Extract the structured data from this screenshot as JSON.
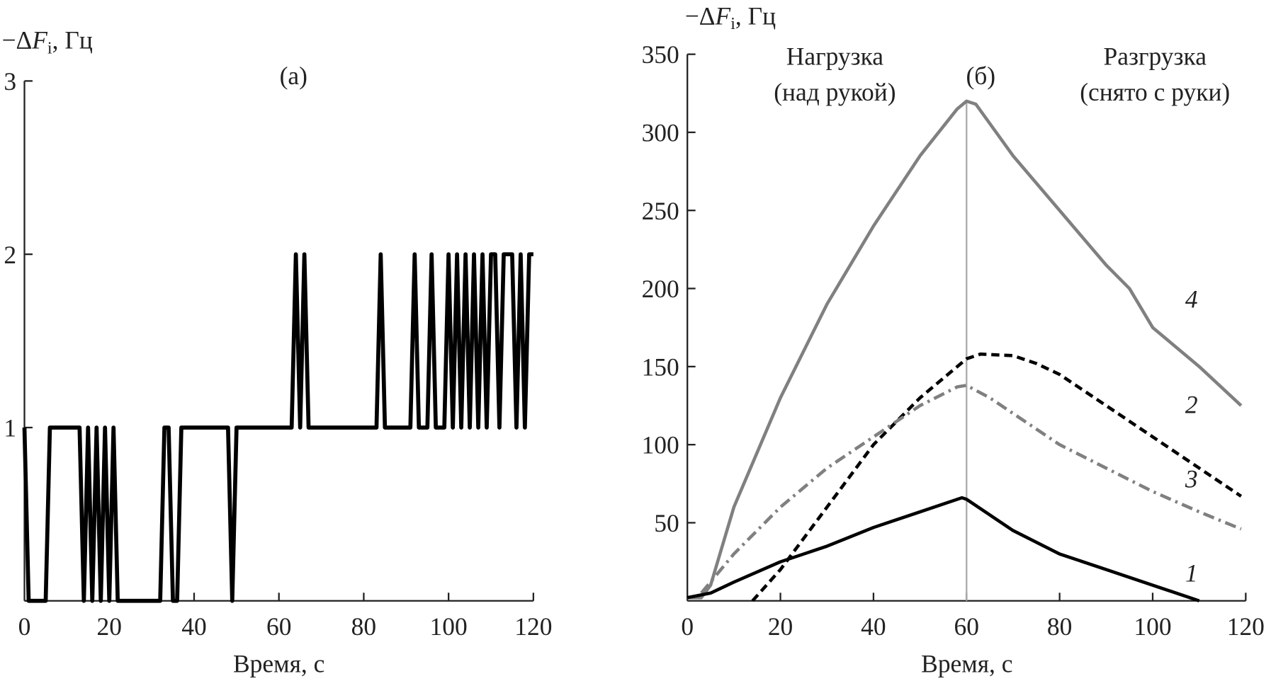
{
  "chart_data": [
    {
      "type": "line",
      "panel": "(а)",
      "ylabel_prefix": "−Δ",
      "ylabel_var": "F",
      "ylabel_sub": "i",
      "ylabel_unit": ", Гц",
      "xlabel": "Время, с",
      "xlim": [
        0,
        120
      ],
      "ylim": [
        0,
        3
      ],
      "xticks": [
        0,
        20,
        40,
        60,
        80,
        100,
        120
      ],
      "yticks": [
        0,
        1,
        2,
        3
      ],
      "ytick_labels": [
        "",
        "1",
        "2",
        "3"
      ],
      "series": [
        {
          "name": "ΔF",
          "color": "#000000",
          "points": [
            [
              0,
              1
            ],
            [
              1,
              0
            ],
            [
              5,
              0
            ],
            [
              6,
              1
            ],
            [
              13,
              1
            ],
            [
              14,
              0
            ],
            [
              15,
              1
            ],
            [
              16,
              0
            ],
            [
              17,
              1
            ],
            [
              18,
              0
            ],
            [
              19,
              1
            ],
            [
              20,
              0
            ],
            [
              21,
              1
            ],
            [
              22,
              0
            ],
            [
              32,
              0
            ],
            [
              33,
              1
            ],
            [
              34,
              1
            ],
            [
              35,
              0
            ],
            [
              36,
              0
            ],
            [
              37,
              1
            ],
            [
              48,
              1
            ],
            [
              49,
              0
            ],
            [
              50,
              1
            ],
            [
              63,
              1
            ],
            [
              64,
              2
            ],
            [
              65,
              1
            ],
            [
              66,
              2
            ],
            [
              67,
              1
            ],
            [
              83,
              1
            ],
            [
              84,
              2
            ],
            [
              85,
              1
            ],
            [
              91,
              1
            ],
            [
              92,
              2
            ],
            [
              93,
              1
            ],
            [
              95,
              1
            ],
            [
              96,
              2
            ],
            [
              97,
              1
            ],
            [
              99,
              1
            ],
            [
              100,
              2
            ],
            [
              101,
              1
            ],
            [
              102,
              2
            ],
            [
              103,
              1
            ],
            [
              104,
              2
            ],
            [
              105,
              1
            ],
            [
              106,
              2
            ],
            [
              107,
              1
            ],
            [
              108,
              2
            ],
            [
              109,
              1
            ],
            [
              110,
              2
            ],
            [
              111,
              2
            ],
            [
              112,
              1
            ],
            [
              113,
              2
            ],
            [
              115,
              2
            ],
            [
              116,
              1
            ],
            [
              117,
              2
            ],
            [
              118,
              1
            ],
            [
              119,
              2
            ],
            [
              120,
              2
            ]
          ]
        }
      ]
    },
    {
      "type": "line",
      "panel": "(б)",
      "ylabel_prefix": "−Δ",
      "ylabel_var": "F",
      "ylabel_sub": "i",
      "ylabel_unit": ", Гц",
      "xlabel": "Время, с",
      "xlim": [
        0,
        120
      ],
      "ylim": [
        0,
        350
      ],
      "xticks": [
        0,
        20,
        40,
        60,
        80,
        100,
        120
      ],
      "yticks": [
        50,
        100,
        150,
        200,
        250,
        300,
        350
      ],
      "annotations": {
        "load": [
          "Нагрузка",
          "(над рукой)"
        ],
        "unload": [
          "Разгрузка",
          "(снято с руки)"
        ],
        "divider_x": 60
      },
      "series": [
        {
          "name": "4",
          "color": "#808080",
          "style": "solid",
          "points": [
            [
              0,
              2
            ],
            [
              3,
              2
            ],
            [
              5,
              10
            ],
            [
              10,
              60
            ],
            [
              20,
              130
            ],
            [
              30,
              190
            ],
            [
              40,
              240
            ],
            [
              50,
              285
            ],
            [
              58,
              315
            ],
            [
              60,
              320
            ],
            [
              62,
              318
            ],
            [
              70,
              285
            ],
            [
              80,
              250
            ],
            [
              90,
              215
            ],
            [
              95,
              200
            ],
            [
              100,
              175
            ],
            [
              110,
              150
            ],
            [
              119,
              125
            ]
          ]
        },
        {
          "name": "2",
          "color": "#000000",
          "style": "dashed",
          "points": [
            [
              14,
              0
            ],
            [
              20,
              20
            ],
            [
              30,
              60
            ],
            [
              40,
              100
            ],
            [
              50,
              130
            ],
            [
              58,
              150
            ],
            [
              60,
              155
            ],
            [
              63,
              158
            ],
            [
              70,
              157
            ],
            [
              75,
              152
            ],
            [
              80,
              145
            ],
            [
              90,
              125
            ],
            [
              100,
              105
            ],
            [
              110,
              85
            ],
            [
              119,
              67
            ]
          ]
        },
        {
          "name": "3",
          "color": "#808080",
          "style": "dashdot",
          "points": [
            [
              3,
              5
            ],
            [
              10,
              30
            ],
            [
              20,
              60
            ],
            [
              30,
              85
            ],
            [
              40,
              105
            ],
            [
              50,
              125
            ],
            [
              58,
              137
            ],
            [
              60,
              138
            ],
            [
              65,
              130
            ],
            [
              70,
              120
            ],
            [
              80,
              100
            ],
            [
              90,
              85
            ],
            [
              100,
              70
            ],
            [
              110,
              57
            ],
            [
              119,
              46
            ]
          ]
        },
        {
          "name": "1",
          "color": "#000000",
          "style": "solid",
          "points": [
            [
              0,
              2
            ],
            [
              5,
              5
            ],
            [
              10,
              12
            ],
            [
              20,
              25
            ],
            [
              30,
              35
            ],
            [
              40,
              47
            ],
            [
              50,
              57
            ],
            [
              59,
              66
            ],
            [
              60,
              65
            ],
            [
              65,
              55
            ],
            [
              70,
              45
            ],
            [
              80,
              30
            ],
            [
              90,
              20
            ],
            [
              100,
              10
            ],
            [
              108,
              2
            ],
            [
              110,
              0
            ]
          ]
        }
      ]
    }
  ]
}
